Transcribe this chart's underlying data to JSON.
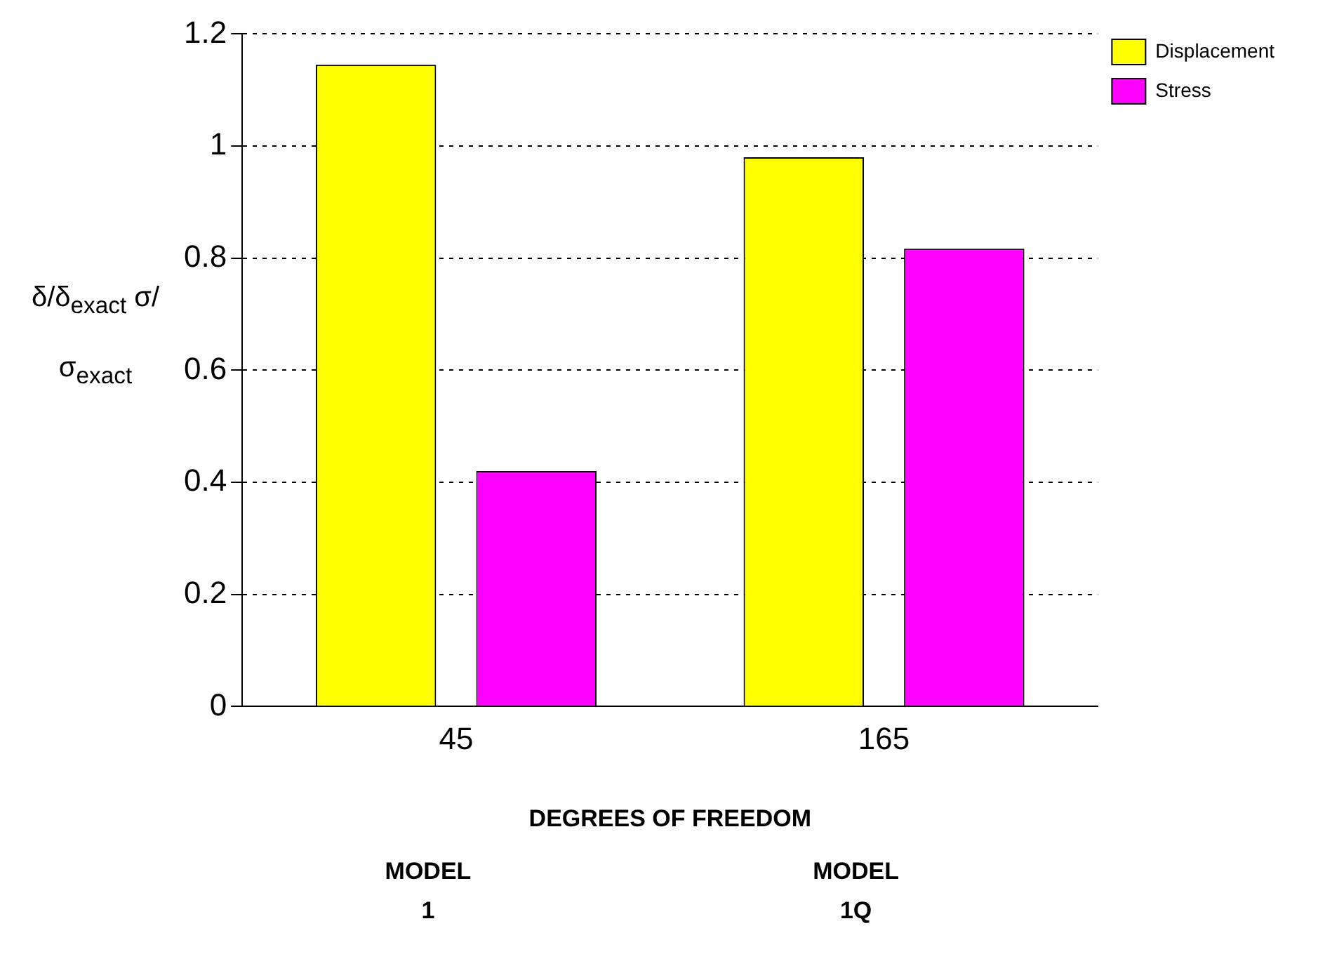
{
  "chart_data": {
    "type": "bar",
    "categories": [
      "45",
      "165"
    ],
    "series": [
      {
        "name": "Displacement",
        "color": "#ffff00",
        "values": [
          1.145,
          0.98
        ]
      },
      {
        "name": "Stress",
        "color": "#ff00ff",
        "values": [
          0.42,
          0.817
        ]
      }
    ],
    "xlabel": "DEGREES OF FREEDOM",
    "ylabel": "δ/δ$_{exact}$ σ/σ$_{exact}$",
    "annotations": [
      "MODEL 1",
      "MODEL 1Q"
    ],
    "ylim": [
      0,
      1.2
    ],
    "yticks": [
      0,
      0.2,
      0.4,
      0.6,
      0.8,
      1,
      1.2
    ],
    "grid": "y",
    "legend": "top right"
  }
}
